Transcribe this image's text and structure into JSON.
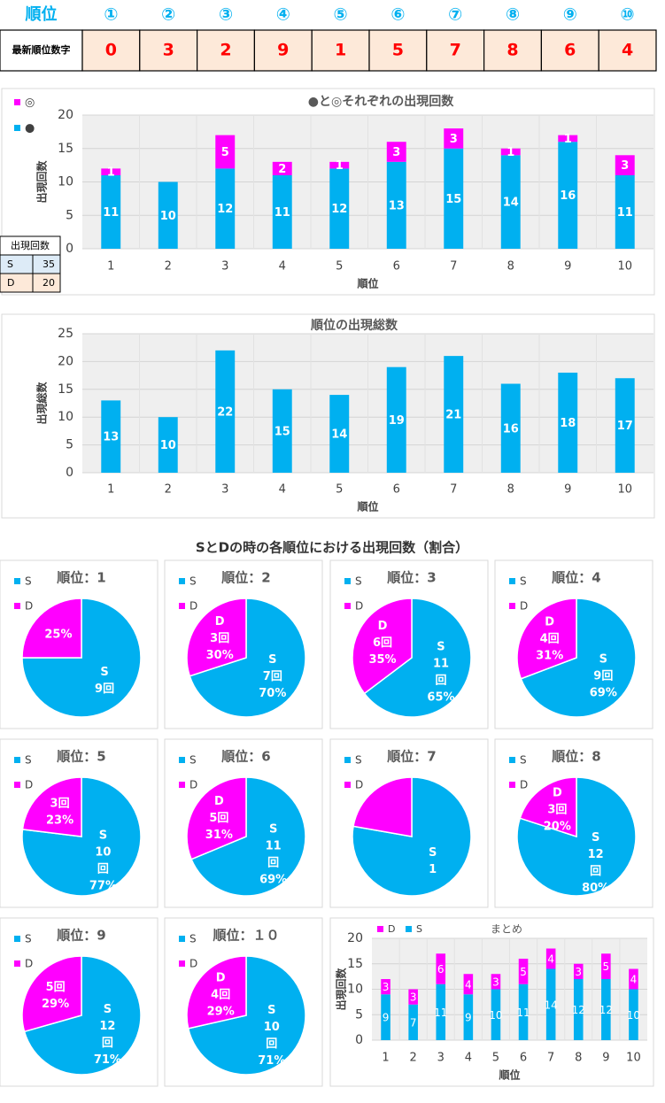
{
  "latest_table": {
    "headers": [
      "順位",
      "①",
      "②",
      "③",
      "④",
      "⑤",
      "⑥",
      "⑦",
      "⑧",
      "⑨",
      "⑩"
    ],
    "row": [
      "最新順位数字",
      0,
      3,
      2,
      9,
      1,
      5,
      7,
      8,
      6,
      4
    ]
  },
  "count_table": {
    "header": "出現回数",
    "rows": [
      [
        "S",
        35
      ],
      [
        "D",
        20
      ]
    ]
  },
  "section_title": "SとDの時の各順位における出現回数（割合）",
  "chart_data": [
    {
      "type": "stacked_bar",
      "title": "●と◎それぞれの出現回数",
      "y_label": "出現回数",
      "x_label": "順位",
      "categories": [
        "1",
        "2",
        "3",
        "4",
        "5",
        "6",
        "7",
        "8",
        "9",
        "10"
      ],
      "ylim": [
        0,
        20
      ],
      "yticks": [
        0,
        5,
        10,
        15,
        20
      ],
      "grid": true,
      "series": [
        {
          "name": "●",
          "color": "#00b0f0",
          "values": [
            11,
            10,
            12,
            11,
            12,
            13,
            15,
            14,
            16,
            11
          ]
        },
        {
          "name": "◎",
          "color": "#ff00ff",
          "values": [
            1,
            null,
            5,
            2,
            1,
            3,
            3,
            1,
            1,
            3
          ]
        }
      ]
    },
    {
      "type": "bar",
      "title": "順位の出現総数",
      "y_label": "出現総数",
      "x_label": "順位",
      "color": "#00b0f0",
      "categories": [
        "1",
        "2",
        "3",
        "4",
        "5",
        "6",
        "7",
        "8",
        "9",
        "10"
      ],
      "values": [
        13,
        10,
        22,
        15,
        14,
        19,
        21,
        16,
        18,
        17
      ],
      "ylim": [
        0,
        25
      ],
      "yticks": [
        0,
        5,
        10,
        15,
        20,
        25
      ],
      "grid": true
    },
    {
      "type": "pie",
      "title": "順位：1",
      "categories": [
        "S",
        "D"
      ],
      "colors": [
        "#00b0f0",
        "#ff00ff"
      ],
      "values": [
        9,
        3
      ],
      "slice_labels": [
        [
          "S",
          "9回"
        ],
        [
          "25%"
        ]
      ]
    },
    {
      "type": "pie",
      "title": "順位：2",
      "categories": [
        "S",
        "D"
      ],
      "colors": [
        "#00b0f0",
        "#ff00ff"
      ],
      "values": [
        7,
        3
      ],
      "slice_labels": [
        [
          "S",
          "7回",
          "70%"
        ],
        [
          "D",
          "3回",
          "30%"
        ]
      ]
    },
    {
      "type": "pie",
      "title": "順位：3",
      "categories": [
        "S",
        "D"
      ],
      "colors": [
        "#00b0f0",
        "#ff00ff"
      ],
      "values": [
        11,
        6
      ],
      "slice_labels": [
        [
          "S",
          "11",
          "回",
          "65%"
        ],
        [
          "D",
          "6回",
          "35%"
        ]
      ]
    },
    {
      "type": "pie",
      "title": "順位：4",
      "categories": [
        "S",
        "D"
      ],
      "colors": [
        "#00b0f0",
        "#ff00ff"
      ],
      "values": [
        9,
        4
      ],
      "slice_labels": [
        [
          "S",
          "9回",
          "69%"
        ],
        [
          "D",
          "4回",
          "31%"
        ]
      ]
    },
    {
      "type": "pie",
      "title": "順位：5",
      "categories": [
        "S",
        "D"
      ],
      "colors": [
        "#00b0f0",
        "#ff00ff"
      ],
      "values": [
        10,
        3
      ],
      "slice_labels": [
        [
          "S",
          "10",
          "回",
          "77%"
        ],
        [
          "3回",
          "23%"
        ]
      ]
    },
    {
      "type": "pie",
      "title": "順位：6",
      "categories": [
        "S",
        "D"
      ],
      "colors": [
        "#00b0f0",
        "#ff00ff"
      ],
      "values": [
        11,
        5
      ],
      "slice_labels": [
        [
          "S",
          "11",
          "回",
          "69%"
        ],
        [
          "D",
          "5回",
          "31%"
        ]
      ]
    },
    {
      "type": "pie",
      "title": "順位：7",
      "categories": [
        "S",
        "D"
      ],
      "colors": [
        "#00b0f0",
        "#ff00ff"
      ],
      "values": [
        14,
        4
      ],
      "slice_labels": [
        [
          "S",
          "1"
        ],
        []
      ]
    },
    {
      "type": "pie",
      "title": "順位：8",
      "categories": [
        "S",
        "D"
      ],
      "colors": [
        "#00b0f0",
        "#ff00ff"
      ],
      "values": [
        12,
        3
      ],
      "slice_labels": [
        [
          "S",
          "12",
          "回",
          "80%"
        ],
        [
          "D",
          "3回",
          "20%"
        ]
      ]
    },
    {
      "type": "pie",
      "title": "順位：9",
      "categories": [
        "S",
        "D"
      ],
      "colors": [
        "#00b0f0",
        "#ff00ff"
      ],
      "values": [
        12,
        5
      ],
      "slice_labels": [
        [
          "S",
          "12",
          "回",
          "71%"
        ],
        [
          "5回",
          "29%"
        ]
      ]
    },
    {
      "type": "pie",
      "title": "順位：１０",
      "categories": [
        "S",
        "D"
      ],
      "colors": [
        "#00b0f0",
        "#ff00ff"
      ],
      "values": [
        10,
        4
      ],
      "slice_labels": [
        [
          "S",
          "10",
          "回",
          "71%"
        ],
        [
          "D",
          "4回",
          "29%"
        ]
      ]
    },
    {
      "type": "stacked_bar",
      "title": "まとめ",
      "y_label": "出現回数",
      "x_label": "順位",
      "categories": [
        "1",
        "2",
        "3",
        "4",
        "5",
        "6",
        "7",
        "8",
        "9",
        "10"
      ],
      "ylim": [
        0,
        20
      ],
      "yticks": [
        0,
        5,
        10,
        15,
        20
      ],
      "grid": true,
      "series": [
        {
          "name": "S",
          "color": "#00b0f0",
          "values": [
            9,
            7,
            11,
            9,
            10,
            11,
            14,
            12,
            12,
            10
          ]
        },
        {
          "name": "D",
          "color": "#ff00ff",
          "values": [
            3,
            3,
            6,
            4,
            3,
            5,
            4,
            3,
            5,
            4
          ]
        }
      ]
    }
  ]
}
